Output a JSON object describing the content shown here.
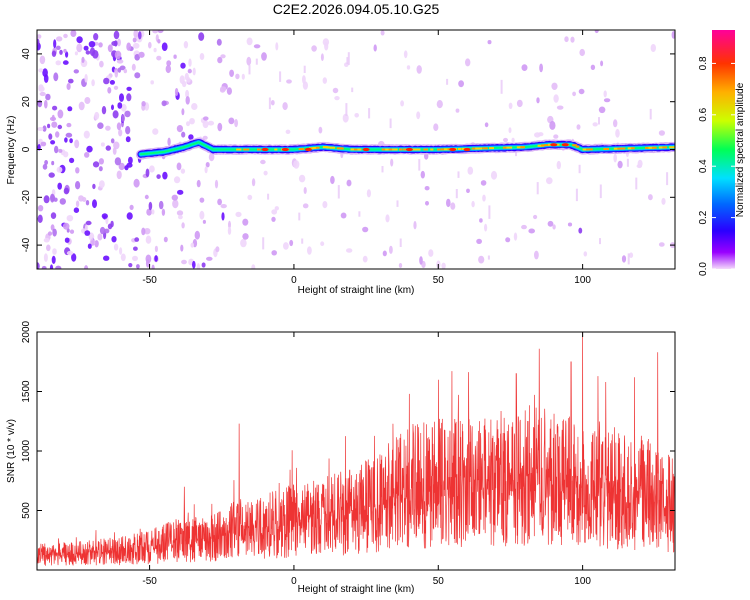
{
  "figure": {
    "title": "C2E2.2026.094.05.10.G25"
  },
  "chart_data": [
    {
      "type": "heatmap",
      "xlabel": "Height of straight line (km)",
      "ylabel": "Frequency (Hz)",
      "xlim": [
        -89,
        132
      ],
      "ylim": [
        -50,
        50
      ],
      "xticks": [
        -50,
        0,
        50,
        100
      ],
      "yticks": [
        -40,
        -20,
        0,
        20,
        40
      ],
      "colorbar": {
        "label": "Normalized spectral amplitude",
        "range": [
          0.0,
          0.93
        ],
        "ticks": [
          0.0,
          0.2,
          0.4,
          0.6,
          0.8
        ],
        "tick_labels": [
          "0.0",
          "0.2",
          "0.4",
          "0.6",
          "0.8"
        ],
        "colormap": [
          "#f4d9fb",
          "#9900ff",
          "#2a00ff",
          "#0066ff",
          "#00e0ff",
          "#00ff55",
          "#ccff00",
          "#ffb000",
          "#ff3300",
          "#ff0099"
        ]
      },
      "signal_band": {
        "start_height": -53,
        "center_freq": [
          [
            -53,
            -2
          ],
          [
            -45,
            -1
          ],
          [
            -38,
            1
          ],
          [
            -33,
            3
          ],
          [
            -28,
            0
          ],
          [
            -15,
            0
          ],
          [
            0,
            0
          ],
          [
            10,
            1
          ],
          [
            20,
            0
          ],
          [
            50,
            0
          ],
          [
            80,
            1
          ],
          [
            88,
            2
          ],
          [
            96,
            2
          ],
          [
            100,
            0
          ],
          [
            132,
            1
          ]
        ],
        "hotspots": [
          [
            -10,
            0
          ],
          [
            -3,
            0
          ],
          [
            5,
            0
          ],
          [
            25,
            0
          ],
          [
            40,
            0
          ],
          [
            55,
            0
          ],
          [
            60,
            0
          ],
          [
            90,
            2
          ],
          [
            94,
            2
          ]
        ]
      }
    },
    {
      "type": "line",
      "xlabel": "Height of straight line (km)",
      "ylabel": "SNR (10 * v/v)",
      "xlim": [
        -89,
        132
      ],
      "ylim": [
        0,
        2000
      ],
      "xticks": [
        -50,
        0,
        50,
        100
      ],
      "yticks": [
        500,
        1000,
        1500,
        2000
      ],
      "color": "#ee3333",
      "envelope": [
        [
          -89,
          210
        ],
        [
          -75,
          230
        ],
        [
          -60,
          270
        ],
        [
          -50,
          320
        ],
        [
          -40,
          420
        ],
        [
          -30,
          430
        ],
        [
          -20,
          580
        ],
        [
          -10,
          620
        ],
        [
          0,
          700
        ],
        [
          10,
          760
        ],
        [
          20,
          830
        ],
        [
          30,
          960
        ],
        [
          38,
          1150
        ],
        [
          45,
          1200
        ],
        [
          55,
          1230
        ],
        [
          65,
          1200
        ],
        [
          75,
          1320
        ],
        [
          85,
          1330
        ],
        [
          95,
          1250
        ],
        [
          105,
          1200
        ],
        [
          115,
          1120
        ],
        [
          125,
          1050
        ],
        [
          132,
          900
        ]
      ],
      "spikes": [
        [
          -19,
          1230
        ],
        [
          -38,
          700
        ],
        [
          40,
          1480
        ],
        [
          77,
          1650
        ],
        [
          85,
          1860
        ],
        [
          96,
          1750
        ],
        [
          100,
          2000
        ],
        [
          108,
          1580
        ],
        [
          118,
          1620
        ],
        [
          126,
          1830
        ]
      ]
    }
  ]
}
